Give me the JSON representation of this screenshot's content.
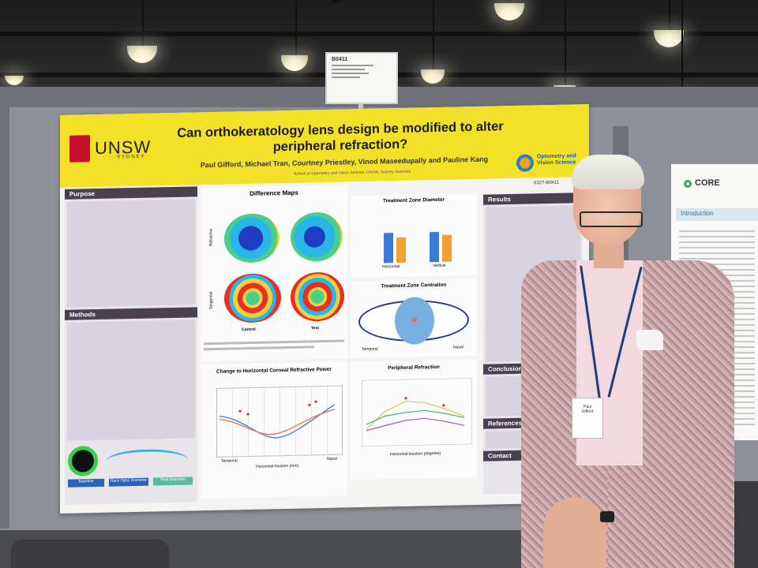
{
  "poster": {
    "title": "Can orthokeratology lens design be modified to alter peripheral refraction?",
    "authors": "Paul Gifford, Michael Tran, Courtney Priestley, Vinod Maseedupally and Pauline Kang",
    "affiliation": "School of Optometry and Vision Science, UNSW, Sydney, Australia",
    "poster_id": "6327-B0411",
    "university": "UNSW",
    "university_sub": "SYDNEY",
    "department_logo": "Optometry and Vision Science",
    "sections": {
      "purpose": "Purpose",
      "methods": "Methods",
      "results": "Results",
      "conclusions": "Conclusions",
      "references": "References",
      "contact": "Contact"
    },
    "figures": {
      "difference_maps": "Difference Maps",
      "refractive": "Refractive",
      "tangential": "Tangential",
      "control": "Control",
      "test": "Test",
      "treatment_zone_diameter": "Treatment Zone Diameter",
      "treatment_zone_centration": "Treatment Zone Centration",
      "change_horizontal": "Change to Horizontal Corneal Refractive Power",
      "peripheral_refraction": "Peripheral Refraction",
      "horizontal": "Horizontal",
      "vertical": "Vertical",
      "temporal": "Temporal",
      "nasal": "Nasal",
      "horizontal_location": "Horizontal location (mm)",
      "horizontal_location_deg": "Horizontal location (degrees)",
      "baseline": "Baseline",
      "back_optic_diameter": "Back Optic Diameter",
      "total_diameter": "Total Diameter"
    }
  },
  "booth_sign": "B0411",
  "right_poster": {
    "logo": "CORE",
    "heading": "Introduction"
  },
  "badge": {
    "name_line1": "Paul",
    "name_line2": "Gifford"
  },
  "colors": {
    "banner": "#f2e128",
    "section_header": "#4a4050",
    "control_bar": "#3a7bd5",
    "test_bar": "#f0a030"
  }
}
